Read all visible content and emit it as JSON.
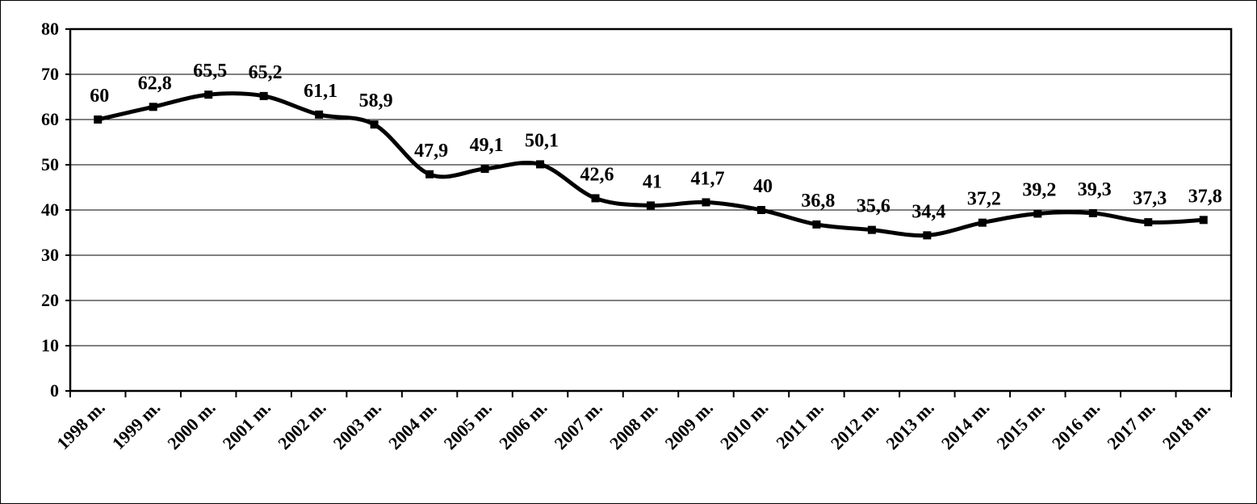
{
  "chart_data": {
    "type": "line",
    "title": "",
    "xlabel": "",
    "ylabel": "",
    "categories": [
      "1998 m.",
      "1999 m.",
      "2000 m.",
      "2001 m.",
      "2002 m.",
      "2003 m.",
      "2004 m.",
      "2005 m.",
      "2006 m.",
      "2007 m.",
      "2008 m.",
      "2009 m.",
      "2010 m.",
      "2011 m.",
      "2012 m.",
      "2013 m.",
      "2014 m.",
      "2015 m.",
      "2016 m.",
      "2017 m.",
      "2018 m."
    ],
    "series": [
      {
        "values": [
          60,
          62.8,
          65.5,
          65.2,
          61.1,
          58.9,
          47.9,
          49.1,
          50.1,
          42.6,
          41,
          41.7,
          40,
          36.8,
          35.6,
          34.4,
          37.2,
          39.2,
          39.3,
          37.3,
          37.8
        ],
        "labels": [
          "60",
          "62,8",
          "65,5",
          "65,2",
          "61,1",
          "58,9",
          "47,9",
          "49,1",
          "50,1",
          "42,6",
          "41",
          "41,7",
          "40",
          "36,8",
          "35,6",
          "34,4",
          "37,2",
          "39,2",
          "39,3",
          "37,3",
          "37,8"
        ],
        "color": "#000000",
        "marker": "square",
        "smooth": true
      }
    ],
    "ylim": [
      0,
      80
    ],
    "yticks": [
      "0",
      "10",
      "20",
      "30",
      "40",
      "50",
      "60",
      "70",
      "80"
    ],
    "grid": true,
    "legend": "none"
  }
}
